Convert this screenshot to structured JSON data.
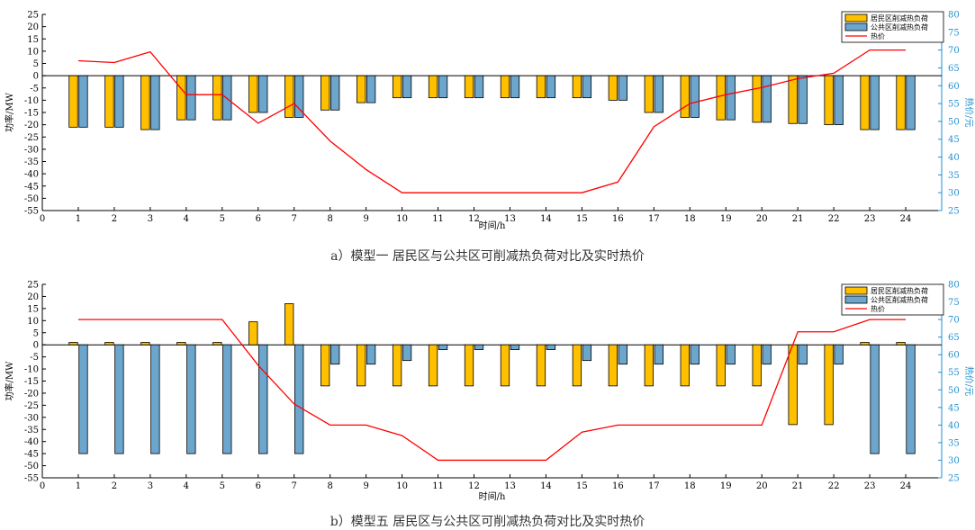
{
  "chart_data": [
    {
      "type": "bar",
      "caption": "a）模型一 居民区与公共区可削减热负荷对比及实时热价",
      "xlabel": "时间/h",
      "ylabel_left": "功率/MW",
      "ylabel_right": "热价/元",
      "xlim": [
        0,
        25
      ],
      "ylim_left": [
        -55,
        25
      ],
      "ylim_right": [
        25,
        80
      ],
      "x_ticks": [
        "0",
        "1",
        "2",
        "3",
        "4",
        "5",
        "6",
        "7",
        "8",
        "9",
        "10",
        "11",
        "12",
        "13",
        "14",
        "15",
        "16",
        "17",
        "18",
        "19",
        "20",
        "21",
        "22",
        "23",
        "24"
      ],
      "y_ticks_left": [
        "25",
        "20",
        "15",
        "10",
        "5",
        "0",
        "-5",
        "-10",
        "-15",
        "-20",
        "-25",
        "-30",
        "-35",
        "-40",
        "-45",
        "-50",
        "-55"
      ],
      "y_ticks_right": [
        "80",
        "75",
        "70",
        "65",
        "60",
        "55",
        "50",
        "45",
        "40",
        "35",
        "30",
        "25"
      ],
      "categories": [
        "1",
        "2",
        "3",
        "4",
        "5",
        "6",
        "7",
        "8",
        "9",
        "10",
        "11",
        "12",
        "13",
        "14",
        "15",
        "16",
        "17",
        "18",
        "19",
        "20",
        "21",
        "22",
        "23",
        "24"
      ],
      "series": [
        {
          "name": "居民区削减热负荷",
          "kind": "bar",
          "color": "#FFC000",
          "values": [
            -21,
            -21,
            -22,
            -18,
            -18,
            -15,
            -17,
            -14,
            -11,
            -9,
            -9,
            -9,
            -9,
            -9,
            -9,
            -10,
            -15,
            -17,
            -18,
            -19,
            -19.5,
            -20,
            -22,
            -22
          ]
        },
        {
          "name": "公共区削减热负荷",
          "kind": "bar",
          "color": "#6CA6CD",
          "values": [
            -21,
            -21,
            -22,
            -18,
            -18,
            -15,
            -17,
            -14,
            -11,
            -9,
            -9,
            -9,
            -9,
            -9,
            -9,
            -10,
            -15,
            -17,
            -18,
            -19,
            -19.5,
            -20,
            -22,
            -22
          ]
        },
        {
          "name": "热价",
          "kind": "line",
          "axis": "right",
          "color": "#FF0000",
          "values": [
            67,
            66.5,
            69.5,
            57.5,
            57.5,
            49.5,
            55,
            44.5,
            36.5,
            30,
            30,
            30,
            30,
            30,
            30,
            33,
            48.5,
            55,
            57.5,
            59.5,
            62,
            63.5,
            70,
            70
          ]
        }
      ],
      "legend_position": "top-right",
      "grid": false
    },
    {
      "type": "bar",
      "caption": "b）模型五 居民区与公共区可削减热负荷对比及实时热价",
      "xlabel": "时间/h",
      "ylabel_left": "功率/MW",
      "ylabel_right": "热价/元",
      "xlim": [
        0,
        25
      ],
      "ylim_left": [
        -55,
        25
      ],
      "ylim_right": [
        25,
        80
      ],
      "x_ticks": [
        "0",
        "1",
        "2",
        "3",
        "4",
        "5",
        "6",
        "7",
        "8",
        "9",
        "10",
        "11",
        "12",
        "13",
        "14",
        "15",
        "16",
        "17",
        "18",
        "19",
        "20",
        "21",
        "22",
        "23",
        "24"
      ],
      "y_ticks_left": [
        "25",
        "20",
        "15",
        "10",
        "5",
        "0",
        "-5",
        "-10",
        "-15",
        "-20",
        "-25",
        "-30",
        "-35",
        "-40",
        "-45",
        "-50",
        "-55"
      ],
      "y_ticks_right": [
        "80",
        "75",
        "70",
        "65",
        "60",
        "55",
        "50",
        "45",
        "40",
        "35",
        "30",
        "25"
      ],
      "categories": [
        "1",
        "2",
        "3",
        "4",
        "5",
        "6",
        "7",
        "8",
        "9",
        "10",
        "11",
        "12",
        "13",
        "14",
        "15",
        "16",
        "17",
        "18",
        "19",
        "20",
        "21",
        "22",
        "23",
        "24"
      ],
      "series": [
        {
          "name": "居民区削减热负荷",
          "kind": "bar",
          "color": "#FFC000",
          "values": [
            1,
            1,
            1,
            1,
            1,
            9.5,
            17,
            -17,
            -17,
            -17,
            -17,
            -17,
            -17,
            -17,
            -17,
            -17,
            -17,
            -17,
            -17,
            -17,
            -33,
            -33,
            1,
            1
          ]
        },
        {
          "name": "公共区削减热负荷",
          "kind": "bar",
          "color": "#6CA6CD",
          "values": [
            -45,
            -45,
            -45,
            -45,
            -45,
            -45,
            -45,
            -8,
            -8,
            -6.5,
            -2,
            -2,
            -2,
            -2,
            -6.5,
            -8,
            -8,
            -8,
            -8,
            -8,
            -8,
            -8,
            -45,
            -45
          ]
        },
        {
          "name": "热价",
          "kind": "line",
          "axis": "right",
          "color": "#FF0000",
          "values": [
            70,
            70,
            70,
            70,
            70,
            57,
            46,
            40,
            40,
            37,
            30,
            30,
            30,
            30,
            38,
            40,
            40,
            40,
            40,
            40,
            66.5,
            66.5,
            70,
            70
          ]
        }
      ],
      "legend_position": "top-right",
      "grid": false
    }
  ]
}
